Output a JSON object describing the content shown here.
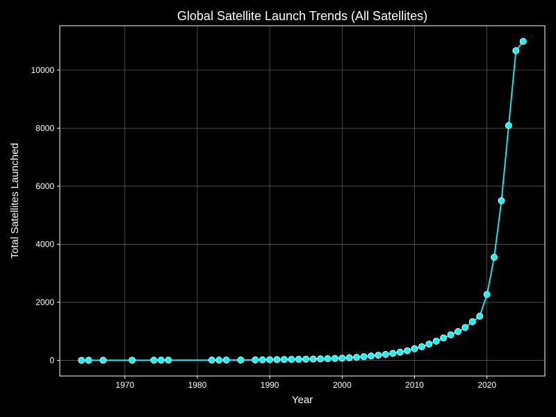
{
  "chart_data": {
    "type": "line",
    "title": "Global Satellite Launch Trends (All Satellites)",
    "xlabel": "Year",
    "ylabel": "Total Satellites Launched",
    "xlim": [
      1961,
      2028
    ],
    "ylim": [
      -540,
      11530
    ],
    "x_ticks": [
      1970,
      1980,
      1990,
      2000,
      2010,
      2020
    ],
    "y_ticks": [
      0,
      2000,
      4000,
      6000,
      8000,
      10000
    ],
    "grid": true,
    "legend": "none",
    "colors": {
      "background": "#000000",
      "axes": "#ffffff",
      "grid": "#808080",
      "line": "#00ffff",
      "marker_fill": "#00ffff",
      "marker_edge": "#ffffff"
    },
    "series": [
      {
        "x": [
          1964,
          1965,
          1967,
          1971,
          1974,
          1975,
          1976,
          1982,
          1983,
          1984,
          1986,
          1988,
          1989,
          1990,
          1991,
          1992,
          1993,
          1994,
          1995,
          1996,
          1997,
          1998,
          1999,
          2000,
          2001,
          2002,
          2003,
          2004,
          2005,
          2006,
          2007,
          2008,
          2009,
          2010,
          2011,
          2012,
          2013,
          2014,
          2015,
          2016,
          2017,
          2018,
          2019,
          2020,
          2021,
          2022,
          2023,
          2024,
          2025
        ],
        "y": [
          1,
          2,
          3,
          4,
          5,
          6,
          7,
          8,
          9,
          10,
          12,
          14,
          18,
          22,
          26,
          30,
          33,
          36,
          40,
          45,
          50,
          58,
          66,
          75,
          90,
          105,
          125,
          150,
          175,
          205,
          240,
          280,
          330,
          400,
          470,
          560,
          660,
          770,
          880,
          990,
          1130,
          1330,
          1520,
          2270,
          3550,
          5500,
          8090,
          10670,
          10990
        ]
      }
    ]
  }
}
